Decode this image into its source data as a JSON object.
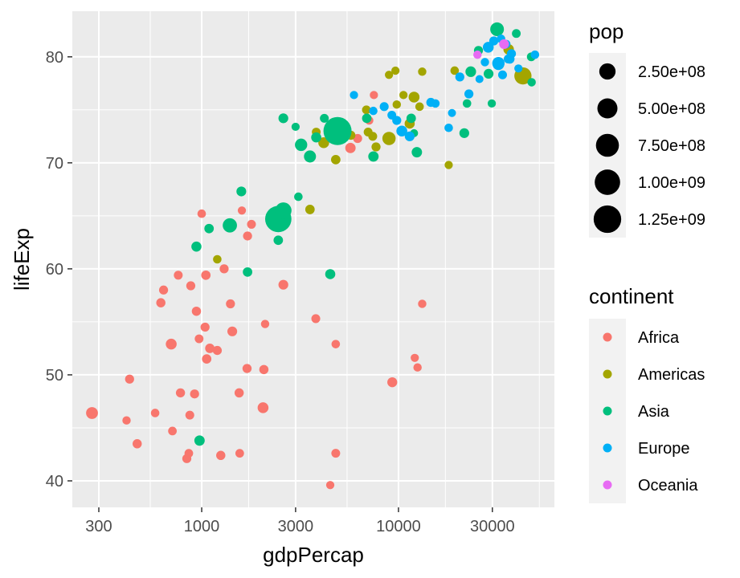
{
  "chart_data": {
    "type": "scatter",
    "xlabel": "gdpPercap",
    "ylabel": "lifeExp",
    "x_scale": "log10",
    "xlim": [
      220,
      62000
    ],
    "ylim": [
      37.5,
      84.3
    ],
    "x_ticks": [
      300,
      1000,
      3000,
      10000,
      30000
    ],
    "x_tick_labels": [
      "300",
      "1000",
      "3000",
      "10000",
      "30000"
    ],
    "y_ticks": [
      40,
      50,
      60,
      70,
      80
    ],
    "y_tick_labels": [
      "40",
      "50",
      "60",
      "70",
      "80"
    ],
    "grid": true,
    "legends": {
      "size": {
        "title": "pop",
        "entries": [
          {
            "label": "2.50e+08",
            "value": 250000000
          },
          {
            "label": "5.00e+08",
            "value": 500000000
          },
          {
            "label": "7.50e+08",
            "value": 750000000
          },
          {
            "label": "1.00e+09",
            "value": 1000000000
          },
          {
            "label": "1.25e+09",
            "value": 1250000000
          }
        ]
      },
      "color": {
        "title": "continent",
        "entries": [
          {
            "label": "Africa",
            "color": "#F8766D"
          },
          {
            "label": "Americas",
            "color": "#A3A500"
          },
          {
            "label": "Asia",
            "color": "#00BF7D"
          },
          {
            "label": "Europe",
            "color": "#00B0F6"
          },
          {
            "label": "Oceania",
            "color": "#E76BF3"
          }
        ]
      },
      "placement": "right"
    },
    "series": [
      {
        "name": "Africa",
        "color": "#F8766D",
        "points": [
          [
            277,
            46.4,
            65
          ],
          [
            415,
            45.7,
            4
          ],
          [
            430,
            49.6,
            10
          ],
          [
            470,
            43.5,
            12
          ],
          [
            580,
            46.4,
            5
          ],
          [
            620,
            56.8,
            12
          ],
          [
            640,
            58.0,
            10
          ],
          [
            700,
            52.9,
            40
          ],
          [
            710,
            44.7,
            6
          ],
          [
            760,
            59.4,
            8
          ],
          [
            780,
            48.3,
            11
          ],
          [
            840,
            42.1,
            10
          ],
          [
            860,
            42.6,
            6
          ],
          [
            870,
            46.2,
            8
          ],
          [
            880,
            58.4,
            10
          ],
          [
            920,
            48.2,
            10
          ],
          [
            940,
            56.0,
            12
          ],
          [
            970,
            53.4,
            7
          ],
          [
            1000,
            65.2,
            5
          ],
          [
            1040,
            54.5,
            10
          ],
          [
            1050,
            59.4,
            14
          ],
          [
            1060,
            51.5,
            14
          ],
          [
            1100,
            52.5,
            15
          ],
          [
            1200,
            52.3,
            10
          ],
          [
            1250,
            42.4,
            12
          ],
          [
            1300,
            60.0,
            10
          ],
          [
            1400,
            56.7,
            10
          ],
          [
            1430,
            54.1,
            20
          ],
          [
            1550,
            48.3,
            12
          ],
          [
            1560,
            42.6,
            6
          ],
          [
            1600,
            65.5,
            3
          ],
          [
            1700,
            50.6,
            11
          ],
          [
            1710,
            63.1,
            10
          ],
          [
            1790,
            64.2,
            8
          ],
          [
            2050,
            46.9,
            40
          ],
          [
            2070,
            50.5,
            12
          ],
          [
            2100,
            54.8,
            4
          ],
          [
            2600,
            58.5,
            20
          ],
          [
            3800,
            55.3,
            8
          ],
          [
            4500,
            39.6,
            3
          ],
          [
            4800,
            52.9,
            5
          ],
          [
            4800,
            42.6,
            8
          ],
          [
            5700,
            71.4,
            30
          ],
          [
            6200,
            72.3,
            10
          ],
          [
            7100,
            74.0,
            4
          ],
          [
            7500,
            76.4,
            3
          ],
          [
            9300,
            49.3,
            22
          ],
          [
            12100,
            51.6,
            3
          ],
          [
            12500,
            50.7,
            4
          ],
          [
            13200,
            56.7,
            4
          ]
        ]
      },
      {
        "name": "Americas",
        "color": "#A3A500",
        "points": [
          [
            1200,
            60.9,
            5
          ],
          [
            3550,
            65.6,
            15
          ],
          [
            3820,
            72.9,
            7
          ],
          [
            4170,
            71.9,
            40
          ],
          [
            4800,
            70.3,
            15
          ],
          [
            5730,
            72.6,
            10
          ],
          [
            6870,
            75.0,
            7
          ],
          [
            7010,
            72.9,
            8
          ],
          [
            7400,
            72.5,
            8
          ],
          [
            7690,
            71.5,
            10
          ],
          [
            8950,
            72.3,
            110
          ],
          [
            8950,
            78.3,
            3
          ],
          [
            9065,
            72.2,
            27
          ],
          [
            9650,
            78.7,
            3
          ],
          [
            9800,
            75.5,
            4
          ],
          [
            10600,
            76.4,
            3
          ],
          [
            11400,
            73.7,
            25
          ],
          [
            12000,
            76.2,
            40
          ],
          [
            12800,
            75.3,
            5
          ],
          [
            13200,
            78.6,
            4
          ],
          [
            18000,
            69.8,
            3
          ],
          [
            19300,
            78.7,
            5
          ],
          [
            36300,
            80.7,
            33
          ],
          [
            42900,
            78.2,
            300
          ]
        ]
      },
      {
        "name": "Asia",
        "color": "#00BF7D",
        "points": [
          [
            940,
            62.1,
            25
          ],
          [
            975,
            43.8,
            30
          ],
          [
            1090,
            63.8,
            15
          ],
          [
            1390,
            64.1,
            150
          ],
          [
            1590,
            67.3,
            20
          ],
          [
            1710,
            59.7,
            15
          ],
          [
            2450,
            62.7,
            15
          ],
          [
            2450,
            64.7,
            1100
          ],
          [
            2600,
            65.5,
            250
          ],
          [
            2600,
            74.2,
            20
          ],
          [
            3000,
            73.4,
            3
          ],
          [
            3100,
            66.8,
            5
          ],
          [
            3200,
            71.7,
            80
          ],
          [
            3550,
            70.6,
            70
          ],
          [
            3550,
            70.5,
            20
          ],
          [
            3820,
            72.4,
            25
          ],
          [
            4200,
            74.2,
            8
          ],
          [
            4500,
            59.5,
            25
          ],
          [
            4900,
            73.0,
            1320
          ],
          [
            6900,
            74.2,
            15
          ],
          [
            7460,
            70.6,
            30
          ],
          [
            11605,
            74.2,
            15
          ],
          [
            12000,
            72.8,
            2
          ],
          [
            12400,
            71.0,
            30
          ],
          [
            21600,
            72.8,
            20
          ],
          [
            22300,
            75.6,
            5
          ],
          [
            23300,
            78.6,
            35
          ],
          [
            25500,
            80.6,
            10
          ],
          [
            28700,
            78.4,
            20
          ],
          [
            29800,
            75.6,
            3
          ],
          [
            31700,
            82.6,
            127
          ],
          [
            39700,
            82.2,
            7
          ],
          [
            47300,
            80.0,
            7
          ],
          [
            47500,
            77.6,
            4
          ]
        ]
      },
      {
        "name": "Europe",
        "color": "#00B0F6",
        "points": [
          [
            5940,
            76.4,
            3
          ],
          [
            7450,
            74.9,
            4
          ],
          [
            8460,
            75.3,
            9
          ],
          [
            9250,
            74.5,
            7
          ],
          [
            9800,
            74.0,
            10
          ],
          [
            10400,
            73.0,
            40
          ],
          [
            11400,
            72.5,
            20
          ],
          [
            14600,
            75.7,
            10
          ],
          [
            15400,
            75.6,
            5
          ],
          [
            18000,
            73.3,
            5
          ],
          [
            18700,
            74.7,
            2
          ],
          [
            20500,
            78.1,
            10
          ],
          [
            22800,
            76.5,
            10
          ],
          [
            25800,
            77.9,
            2
          ],
          [
            27500,
            79.5,
            4
          ],
          [
            28600,
            80.9,
            40
          ],
          [
            30500,
            81.5,
            10
          ],
          [
            32200,
            79.3,
            60
          ],
          [
            32200,
            79.4,
            80
          ],
          [
            33200,
            81.7,
            5
          ],
          [
            33800,
            78.3,
            8
          ],
          [
            35300,
            81.2,
            5
          ],
          [
            36100,
            79.8,
            8
          ],
          [
            36800,
            79.8,
            15
          ],
          [
            37500,
            80.3,
            10
          ],
          [
            40700,
            78.9,
            3
          ],
          [
            49400,
            80.2,
            5
          ]
        ]
      },
      {
        "name": "Oceania",
        "color": "#E76BF3",
        "points": [
          [
            25200,
            80.2,
            4
          ],
          [
            34400,
            81.2,
            20
          ]
        ]
      }
    ]
  }
}
